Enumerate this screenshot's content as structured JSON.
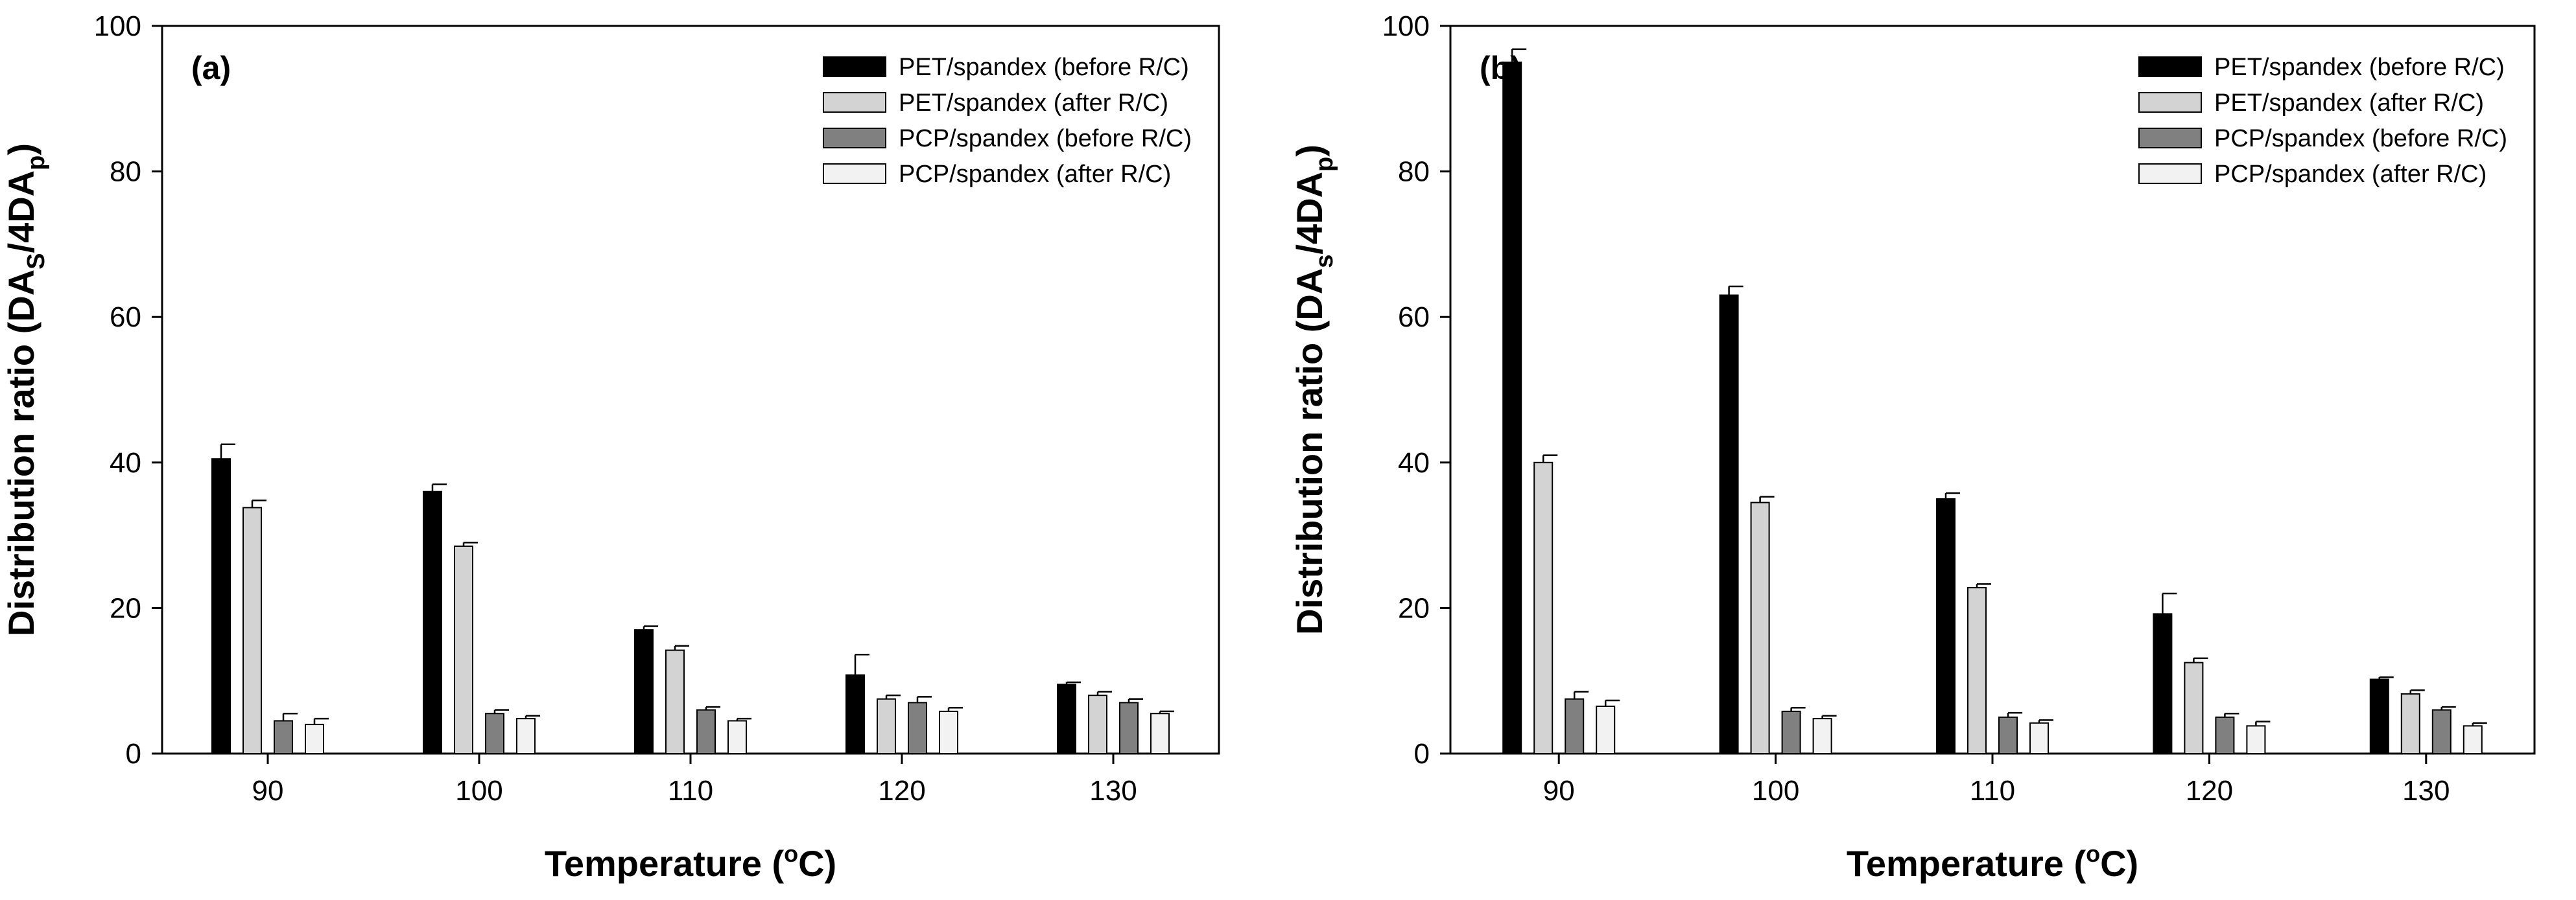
{
  "figure": {
    "legend_position": "top-right",
    "grid": false
  },
  "chart_data": [
    {
      "type": "bar",
      "panel_label": "(a)",
      "xlabel": "Temperature (°C)",
      "ylabel": "Distribution ratio (DAs/4DAp)",
      "ylabel_parts": {
        "main": "Distribution ratio (DA",
        "sub1": "S",
        "mid": "/4DA",
        "sub2": "p",
        "end": ")"
      },
      "xlabel_parts": {
        "main": "Temperature (",
        "sup": "o",
        "end": "C)"
      },
      "categories": [
        "90",
        "100",
        "110",
        "120",
        "130"
      ],
      "yticks": [
        "0",
        "20",
        "40",
        "60",
        "80",
        "100"
      ],
      "ylim": [
        0,
        100
      ],
      "series": [
        {
          "name": "PET/spandex (before R/C)",
          "color": "#000000",
          "values": [
            40.5,
            36.0,
            17.0,
            10.8,
            9.5
          ],
          "errors": [
            2.0,
            1.0,
            0.5,
            2.8,
            0.3
          ]
        },
        {
          "name": "PET/spandex (after R/C)",
          "color": "#d3d3d3",
          "values": [
            33.8,
            28.5,
            14.2,
            7.5,
            8.0
          ],
          "errors": [
            1.0,
            0.5,
            0.6,
            0.5,
            0.5
          ]
        },
        {
          "name": "PCP/spandex (before R/C)",
          "color": "#808080",
          "values": [
            4.5,
            5.5,
            6.0,
            7.0,
            7.0
          ],
          "errors": [
            1.0,
            0.5,
            0.4,
            0.8,
            0.5
          ]
        },
        {
          "name": "PCP/spandex (after R/C)",
          "color": "#f2f2f2",
          "values": [
            4.0,
            4.8,
            4.5,
            5.8,
            5.5
          ],
          "errors": [
            0.8,
            0.4,
            0.3,
            0.5,
            0.3
          ]
        }
      ]
    },
    {
      "type": "bar",
      "panel_label": "(b)",
      "xlabel": "Temperature (°C)",
      "ylabel": "Distribution ratio (DAs/4DAp)",
      "ylabel_parts": {
        "main": "Distribution ratio (DA",
        "sub1": "s",
        "mid": "/4DA",
        "sub2": "p",
        "end": ")"
      },
      "xlabel_parts": {
        "main": "Temperature (",
        "sup": "o",
        "end": "C)"
      },
      "categories": [
        "90",
        "100",
        "110",
        "120",
        "130"
      ],
      "yticks": [
        "0",
        "20",
        "40",
        "60",
        "80",
        "100"
      ],
      "ylim": [
        0,
        100
      ],
      "series": [
        {
          "name": "PET/spandex (before R/C)",
          "color": "#000000",
          "values": [
            95.0,
            63.0,
            35.0,
            19.2,
            10.2
          ],
          "errors": [
            1.8,
            1.2,
            0.8,
            2.8,
            0.3
          ]
        },
        {
          "name": "PET/spandex (after R/C)",
          "color": "#d3d3d3",
          "values": [
            40.0,
            34.5,
            22.8,
            12.5,
            8.2
          ],
          "errors": [
            1.0,
            0.8,
            0.5,
            0.6,
            0.5
          ]
        },
        {
          "name": "PCP/spandex (before R/C)",
          "color": "#808080",
          "values": [
            7.5,
            5.8,
            5.0,
            5.0,
            6.0
          ],
          "errors": [
            1.0,
            0.5,
            0.6,
            0.5,
            0.4
          ]
        },
        {
          "name": "PCP/spandex (after R/C)",
          "color": "#f2f2f2",
          "values": [
            6.5,
            4.8,
            4.2,
            3.8,
            3.8
          ],
          "errors": [
            0.8,
            0.4,
            0.4,
            0.6,
            0.4
          ]
        }
      ]
    }
  ]
}
